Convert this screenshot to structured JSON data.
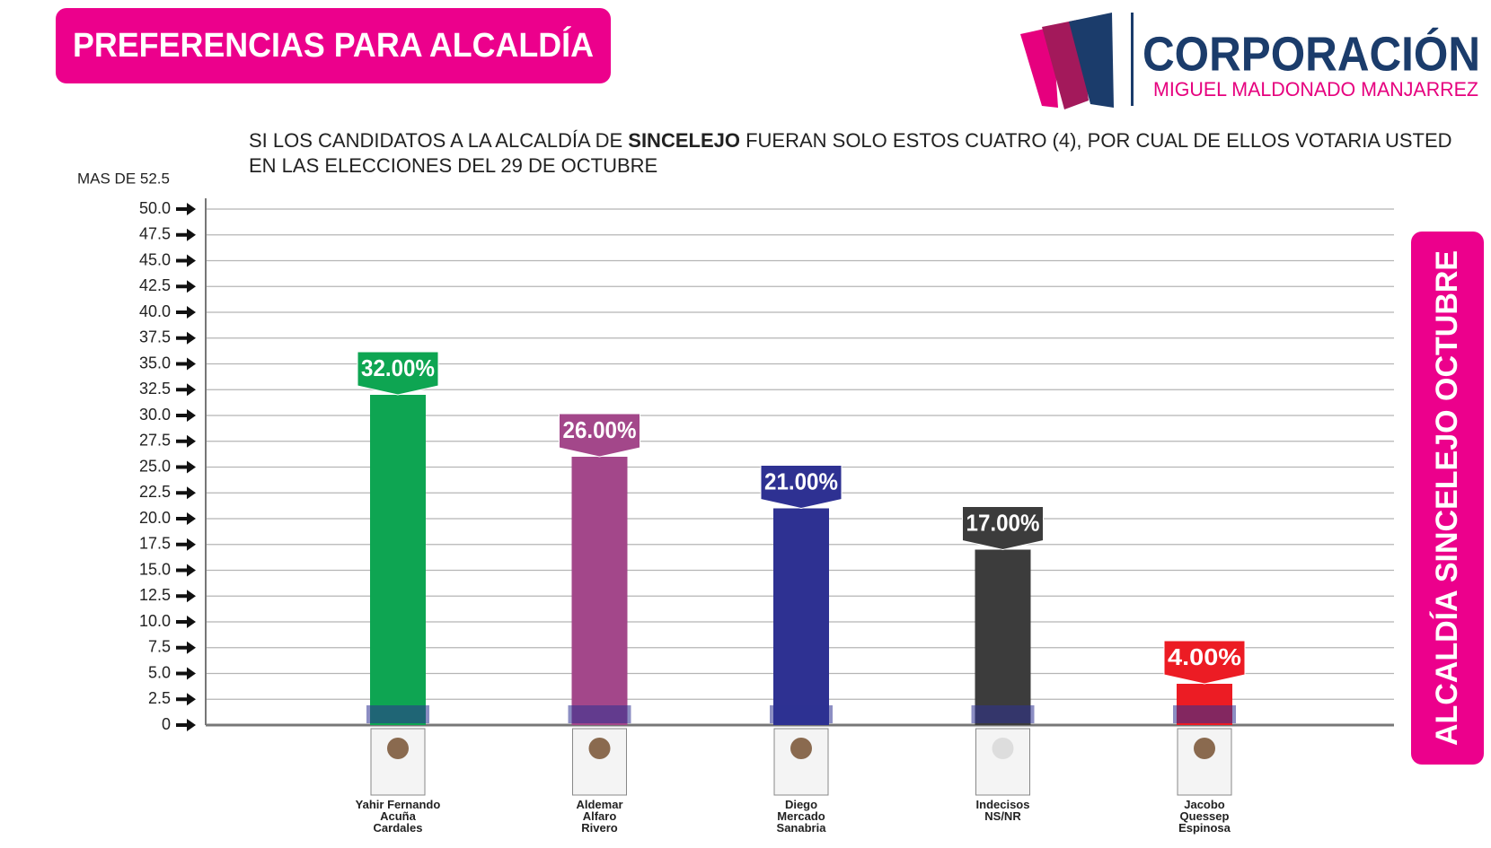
{
  "chart_data": {
    "type": "bar",
    "title": "PREFERENCIAS PARA ALCALDÍA",
    "logo_title": "CORPORACIÓN",
    "logo_subtitle": "MIGUEL MALDONADO MANJARREZ",
    "subtitle_parts": [
      "SI LOS CANDIDATOS A LA ALCALDÍA DE ",
      "SINCELEJO",
      " FUERAN SOLO ESTOS CUATRO (4), POR CUAL DE ELLOS VOTARIA USTED"
    ],
    "subtitle_line2": "EN LAS ELECCIONES DEL 29 DE OCTUBRE",
    "axis_top_label": "MAS DE 52.5",
    "side_label": "ALCALDÍA  SINCELEJO OCTUBRE",
    "categories": [
      [
        "Yahir Fernando",
        "Acuña",
        "Cardales"
      ],
      [
        "Aldemar",
        "Alfaro",
        "Rivero"
      ],
      [
        "Diego",
        "Mercado",
        "Sanabria"
      ],
      [
        "Indecisos",
        "NS/NR"
      ],
      [
        "Jacobo",
        "Quessep",
        "Espinosa"
      ]
    ],
    "values": [
      32,
      26,
      21,
      17,
      4
    ],
    "value_labels": [
      "32.00%",
      "26.00%",
      "21.00%",
      "17.00%",
      "4.00%"
    ],
    "colors": [
      "#0ea552",
      "#a3478a",
      "#2e3192",
      "#3c3c3c",
      "#ec1c24"
    ],
    "ylim": [
      0,
      50
    ],
    "yticks": [
      0,
      2.5,
      {
        "value": 5,
        "label": "5.0"
      },
      7.5,
      {
        "value": 10,
        "label": "10.0"
      },
      12.5,
      {
        "value": 15,
        "label": "15.0"
      },
      17.5,
      {
        "value": 20,
        "label": "20.0"
      },
      22.5,
      {
        "value": 25,
        "label": "25.0"
      },
      27.5,
      {
        "value": 30,
        "label": "30.0"
      },
      32.5,
      {
        "value": 35,
        "label": "35.0"
      },
      37.5,
      {
        "value": 40,
        "label": "40.0"
      },
      42.5,
      {
        "value": 45,
        "label": "45.0"
      },
      47.5,
      {
        "value": 50,
        "label": "50.0"
      }
    ],
    "grid": true
  }
}
